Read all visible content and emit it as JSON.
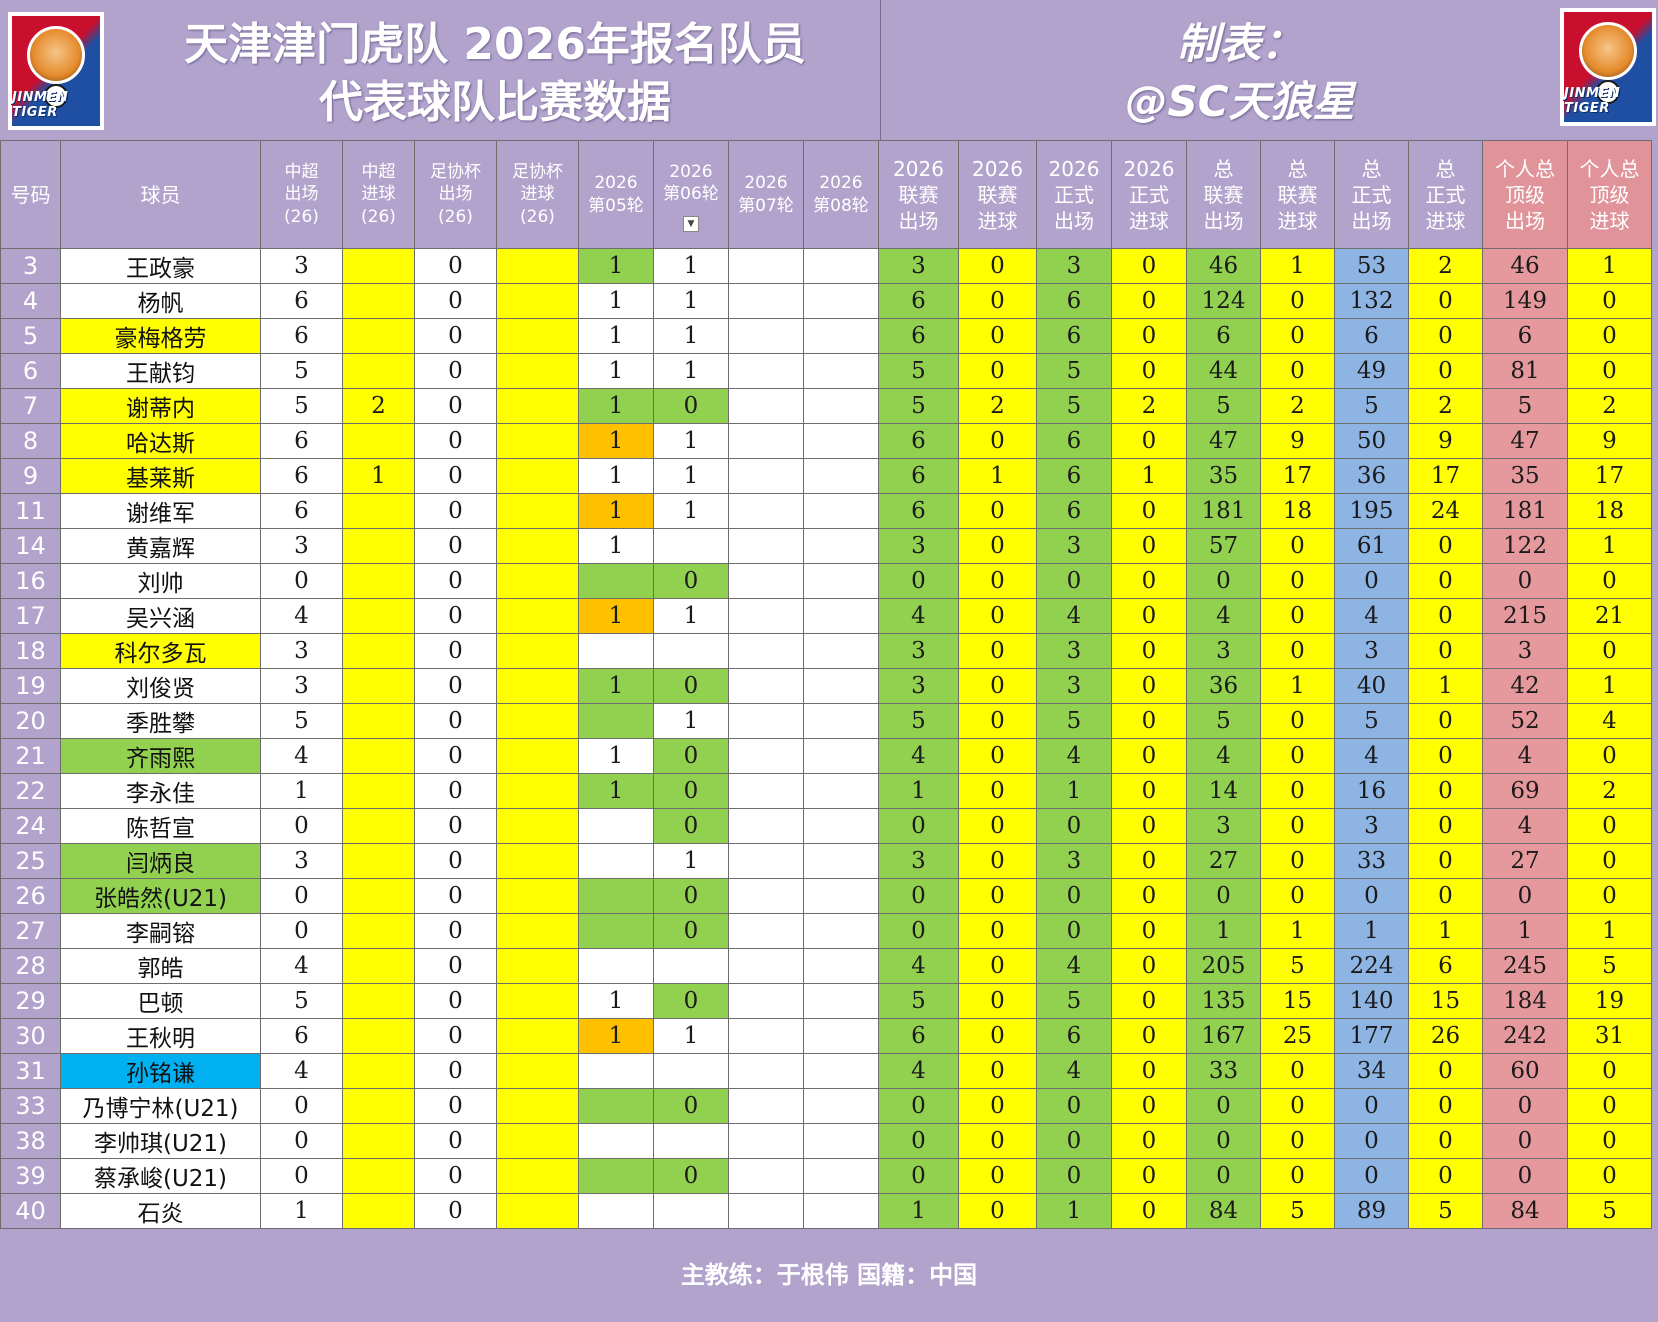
{
  "header": {
    "title_line1": "天津津门虎队 2026年报名队员",
    "title_line2": "代表球队比赛数据",
    "maker_line1": "制表：",
    "maker_line2": "@SC天狼星",
    "logo_text": "JINMEN TIGER"
  },
  "columns": [
    "号码",
    "球员",
    "中超出场(26)",
    "中超进球(26)",
    "足协杯出场(26)",
    "足协杯进球(26)",
    "2026第05轮",
    "2026第06轮",
    "2026第07轮",
    "2026第08轮",
    "2026联赛出场",
    "2026联赛进球",
    "2026正式出场",
    "2026正式进球",
    "总联赛出场",
    "总联赛进球",
    "总正式出场",
    "总正式进球",
    "个人总顶级出场",
    "个人总顶级进球"
  ],
  "header_cells": [
    {
      "l1": "号码"
    },
    {
      "l1": "球员"
    },
    {
      "l1": "中超",
      "l2": "出场",
      "l3": "(26)"
    },
    {
      "l1": "中超",
      "l2": "进球",
      "l3": "(26)"
    },
    {
      "l1": "足协杯",
      "l2": "出场",
      "l3": "(26)"
    },
    {
      "l1": "足协杯",
      "l2": "进球",
      "l3": "(26)"
    },
    {
      "l1": "2026",
      "l2": "第05轮"
    },
    {
      "l1": "2026",
      "l2": "第06轮"
    },
    {
      "l1": "2026",
      "l2": "第07轮"
    },
    {
      "l1": "2026",
      "l2": "第08轮"
    },
    {
      "l1": "2026",
      "l2": "联赛",
      "l3": "出场"
    },
    {
      "l1": "2026",
      "l2": "联赛",
      "l3": "进球"
    },
    {
      "l1": "2026",
      "l2": "正式",
      "l3": "出场"
    },
    {
      "l1": "2026",
      "l2": "正式",
      "l3": "进球"
    },
    {
      "l1": "总",
      "l2": "联赛",
      "l3": "出场"
    },
    {
      "l1": "总",
      "l2": "联赛",
      "l3": "进球"
    },
    {
      "l1": "总",
      "l2": "正式",
      "l3": "出场"
    },
    {
      "l1": "总",
      "l2": "正式",
      "l3": "进球"
    },
    {
      "l1": "个人总",
      "l2": "顶级",
      "l3": "出场"
    },
    {
      "l1": "个人总",
      "l2": "顶级",
      "l3": "进球"
    }
  ],
  "rows": [
    {
      "no": "3",
      "name": "王政豪",
      "name_hl": "",
      "csl_app": "3",
      "csl_goal": "",
      "fa_app": "0",
      "fa_goal": "",
      "r05": "1",
      "r05_c": "g",
      "r06": "1",
      "r06_c": "",
      "r07": "",
      "r08": "",
      "y_lapp": "3",
      "y_lgoal": "0",
      "y_oapp": "3",
      "y_ogoal": "0",
      "t_lapp": "46",
      "t_lgoal": "1",
      "t_oapp": "53",
      "t_ogoal": "2",
      "p_app": "46",
      "p_goal": "1"
    },
    {
      "no": "4",
      "name": "杨帆",
      "name_hl": "",
      "csl_app": "6",
      "csl_goal": "",
      "fa_app": "0",
      "fa_goal": "",
      "r05": "1",
      "r05_c": "",
      "r06": "1",
      "r06_c": "",
      "r07": "",
      "r08": "",
      "y_lapp": "6",
      "y_lgoal": "0",
      "y_oapp": "6",
      "y_ogoal": "0",
      "t_lapp": "124",
      "t_lgoal": "0",
      "t_oapp": "132",
      "t_ogoal": "0",
      "p_app": "149",
      "p_goal": "0"
    },
    {
      "no": "5",
      "name": "豪梅格劳",
      "name_hl": "y",
      "csl_app": "6",
      "csl_goal": "",
      "fa_app": "0",
      "fa_goal": "",
      "r05": "1",
      "r05_c": "",
      "r06": "1",
      "r06_c": "",
      "r07": "",
      "r08": "",
      "y_lapp": "6",
      "y_lgoal": "0",
      "y_oapp": "6",
      "y_ogoal": "0",
      "t_lapp": "6",
      "t_lgoal": "0",
      "t_oapp": "6",
      "t_ogoal": "0",
      "p_app": "6",
      "p_goal": "0"
    },
    {
      "no": "6",
      "name": "王献钧",
      "name_hl": "",
      "csl_app": "5",
      "csl_goal": "",
      "fa_app": "0",
      "fa_goal": "",
      "r05": "1",
      "r05_c": "",
      "r06": "1",
      "r06_c": "",
      "r07": "",
      "r08": "",
      "y_lapp": "5",
      "y_lgoal": "0",
      "y_oapp": "5",
      "y_ogoal": "0",
      "t_lapp": "44",
      "t_lgoal": "0",
      "t_oapp": "49",
      "t_ogoal": "0",
      "p_app": "81",
      "p_goal": "0"
    },
    {
      "no": "7",
      "name": "谢蒂内",
      "name_hl": "y",
      "csl_app": "5",
      "csl_goal": "2",
      "fa_app": "0",
      "fa_goal": "",
      "r05": "1",
      "r05_c": "g",
      "r06": "0",
      "r06_c": "g",
      "r07": "",
      "r08": "",
      "y_lapp": "5",
      "y_lgoal": "2",
      "y_oapp": "5",
      "y_ogoal": "2",
      "t_lapp": "5",
      "t_lgoal": "2",
      "t_oapp": "5",
      "t_ogoal": "2",
      "p_app": "5",
      "p_goal": "2"
    },
    {
      "no": "8",
      "name": "哈达斯",
      "name_hl": "y",
      "csl_app": "6",
      "csl_goal": "",
      "fa_app": "0",
      "fa_goal": "",
      "r05": "1",
      "r05_c": "o",
      "r06": "1",
      "r06_c": "",
      "r07": "",
      "r08": "",
      "y_lapp": "6",
      "y_lgoal": "0",
      "y_oapp": "6",
      "y_ogoal": "0",
      "t_lapp": "47",
      "t_lgoal": "9",
      "t_oapp": "50",
      "t_ogoal": "9",
      "p_app": "47",
      "p_goal": "9"
    },
    {
      "no": "9",
      "name": "基莱斯",
      "name_hl": "y",
      "csl_app": "6",
      "csl_goal": "1",
      "fa_app": "0",
      "fa_goal": "",
      "r05": "1",
      "r05_c": "",
      "r06": "1",
      "r06_c": "",
      "r07": "",
      "r08": "",
      "y_lapp": "6",
      "y_lgoal": "1",
      "y_oapp": "6",
      "y_ogoal": "1",
      "t_lapp": "35",
      "t_lgoal": "17",
      "t_oapp": "36",
      "t_ogoal": "17",
      "p_app": "35",
      "p_goal": "17"
    },
    {
      "no": "11",
      "name": "谢维军",
      "name_hl": "",
      "csl_app": "6",
      "csl_goal": "",
      "fa_app": "0",
      "fa_goal": "",
      "r05": "1",
      "r05_c": "o",
      "r06": "1",
      "r06_c": "",
      "r07": "",
      "r08": "",
      "y_lapp": "6",
      "y_lgoal": "0",
      "y_oapp": "6",
      "y_ogoal": "0",
      "t_lapp": "181",
      "t_lgoal": "18",
      "t_oapp": "195",
      "t_ogoal": "24",
      "p_app": "181",
      "p_goal": "18"
    },
    {
      "no": "14",
      "name": "黄嘉辉",
      "name_hl": "",
      "csl_app": "3",
      "csl_goal": "",
      "fa_app": "0",
      "fa_goal": "",
      "r05": "1",
      "r05_c": "",
      "r06": "",
      "r06_c": "",
      "r07": "",
      "r08": "",
      "y_lapp": "3",
      "y_lgoal": "0",
      "y_oapp": "3",
      "y_ogoal": "0",
      "t_lapp": "57",
      "t_lgoal": "0",
      "t_oapp": "61",
      "t_ogoal": "0",
      "p_app": "122",
      "p_goal": "1"
    },
    {
      "no": "16",
      "name": "刘帅",
      "name_hl": "",
      "csl_app": "0",
      "csl_goal": "",
      "fa_app": "0",
      "fa_goal": "",
      "r05": "",
      "r05_c": "g",
      "r06": "0",
      "r06_c": "g",
      "r07": "",
      "r08": "",
      "y_lapp": "0",
      "y_lgoal": "0",
      "y_oapp": "0",
      "y_ogoal": "0",
      "t_lapp": "0",
      "t_lgoal": "0",
      "t_oapp": "0",
      "t_ogoal": "0",
      "p_app": "0",
      "p_goal": "0"
    },
    {
      "no": "17",
      "name": "吴兴涵",
      "name_hl": "",
      "csl_app": "4",
      "csl_goal": "",
      "fa_app": "0",
      "fa_goal": "",
      "r05": "1",
      "r05_c": "o",
      "r06": "1",
      "r06_c": "",
      "r07": "",
      "r08": "",
      "y_lapp": "4",
      "y_lgoal": "0",
      "y_oapp": "4",
      "y_ogoal": "0",
      "t_lapp": "4",
      "t_lgoal": "0",
      "t_oapp": "4",
      "t_ogoal": "0",
      "p_app": "215",
      "p_goal": "21"
    },
    {
      "no": "18",
      "name": "科尔多瓦",
      "name_hl": "y",
      "csl_app": "3",
      "csl_goal": "",
      "fa_app": "0",
      "fa_goal": "",
      "r05": "",
      "r05_c": "",
      "r06": "",
      "r06_c": "",
      "r07": "",
      "r08": "",
      "y_lapp": "3",
      "y_lgoal": "0",
      "y_oapp": "3",
      "y_ogoal": "0",
      "t_lapp": "3",
      "t_lgoal": "0",
      "t_oapp": "3",
      "t_ogoal": "0",
      "p_app": "3",
      "p_goal": "0"
    },
    {
      "no": "19",
      "name": "刘俊贤",
      "name_hl": "",
      "csl_app": "3",
      "csl_goal": "",
      "fa_app": "0",
      "fa_goal": "",
      "r05": "1",
      "r05_c": "g",
      "r06": "0",
      "r06_c": "g",
      "r07": "",
      "r08": "",
      "y_lapp": "3",
      "y_lgoal": "0",
      "y_oapp": "3",
      "y_ogoal": "0",
      "t_lapp": "36",
      "t_lgoal": "1",
      "t_oapp": "40",
      "t_ogoal": "1",
      "p_app": "42",
      "p_goal": "1"
    },
    {
      "no": "20",
      "name": "季胜攀",
      "name_hl": "",
      "csl_app": "5",
      "csl_goal": "",
      "fa_app": "0",
      "fa_goal": "",
      "r05": "",
      "r05_c": "g",
      "r06": "1",
      "r06_c": "",
      "r07": "",
      "r08": "",
      "y_lapp": "5",
      "y_lgoal": "0",
      "y_oapp": "5",
      "y_ogoal": "0",
      "t_lapp": "5",
      "t_lgoal": "0",
      "t_oapp": "5",
      "t_ogoal": "0",
      "p_app": "52",
      "p_goal": "4"
    },
    {
      "no": "21",
      "name": "齐雨熙",
      "name_hl": "g",
      "csl_app": "4",
      "csl_goal": "",
      "fa_app": "0",
      "fa_goal": "",
      "r05": "1",
      "r05_c": "",
      "r06": "0",
      "r06_c": "g",
      "r07": "",
      "r08": "",
      "y_lapp": "4",
      "y_lgoal": "0",
      "y_oapp": "4",
      "y_ogoal": "0",
      "t_lapp": "4",
      "t_lgoal": "0",
      "t_oapp": "4",
      "t_ogoal": "0",
      "p_app": "4",
      "p_goal": "0"
    },
    {
      "no": "22",
      "name": "李永佳",
      "name_hl": "",
      "csl_app": "1",
      "csl_goal": "",
      "fa_app": "0",
      "fa_goal": "",
      "r05": "1",
      "r05_c": "g",
      "r06": "0",
      "r06_c": "g",
      "r07": "",
      "r08": "",
      "y_lapp": "1",
      "y_lgoal": "0",
      "y_oapp": "1",
      "y_ogoal": "0",
      "t_lapp": "14",
      "t_lgoal": "0",
      "t_oapp": "16",
      "t_ogoal": "0",
      "p_app": "69",
      "p_goal": "2"
    },
    {
      "no": "24",
      "name": "陈哲宣",
      "name_hl": "",
      "csl_app": "0",
      "csl_goal": "",
      "fa_app": "0",
      "fa_goal": "",
      "r05": "",
      "r05_c": "",
      "r06": "0",
      "r06_c": "g",
      "r07": "",
      "r08": "",
      "y_lapp": "0",
      "y_lgoal": "0",
      "y_oapp": "0",
      "y_ogoal": "0",
      "t_lapp": "3",
      "t_lgoal": "0",
      "t_oapp": "3",
      "t_ogoal": "0",
      "p_app": "4",
      "p_goal": "0"
    },
    {
      "no": "25",
      "name": "闫炳良",
      "name_hl": "g",
      "csl_app": "3",
      "csl_goal": "",
      "fa_app": "0",
      "fa_goal": "",
      "r05": "",
      "r05_c": "",
      "r06": "1",
      "r06_c": "",
      "r07": "",
      "r08": "",
      "y_lapp": "3",
      "y_lgoal": "0",
      "y_oapp": "3",
      "y_ogoal": "0",
      "t_lapp": "27",
      "t_lgoal": "0",
      "t_oapp": "33",
      "t_ogoal": "0",
      "p_app": "27",
      "p_goal": "0"
    },
    {
      "no": "26",
      "name": "张皓然(U21)",
      "name_hl": "g",
      "csl_app": "0",
      "csl_goal": "",
      "fa_app": "0",
      "fa_goal": "",
      "r05": "",
      "r05_c": "g",
      "r06": "0",
      "r06_c": "g",
      "r07": "",
      "r08": "",
      "y_lapp": "0",
      "y_lgoal": "0",
      "y_oapp": "0",
      "y_ogoal": "0",
      "t_lapp": "0",
      "t_lgoal": "0",
      "t_oapp": "0",
      "t_ogoal": "0",
      "p_app": "0",
      "p_goal": "0"
    },
    {
      "no": "27",
      "name": "李嗣镕",
      "name_hl": "",
      "csl_app": "0",
      "csl_goal": "",
      "fa_app": "0",
      "fa_goal": "",
      "r05": "",
      "r05_c": "g",
      "r06": "0",
      "r06_c": "g",
      "r07": "",
      "r08": "",
      "y_lapp": "0",
      "y_lgoal": "0",
      "y_oapp": "0",
      "y_ogoal": "0",
      "t_lapp": "1",
      "t_lgoal": "1",
      "t_oapp": "1",
      "t_ogoal": "1",
      "p_app": "1",
      "p_goal": "1"
    },
    {
      "no": "28",
      "name": "郭皓",
      "name_hl": "",
      "csl_app": "4",
      "csl_goal": "",
      "fa_app": "0",
      "fa_goal": "",
      "r05": "",
      "r05_c": "",
      "r06": "",
      "r06_c": "",
      "r07": "",
      "r08": "",
      "y_lapp": "4",
      "y_lgoal": "0",
      "y_oapp": "4",
      "y_ogoal": "0",
      "t_lapp": "205",
      "t_lgoal": "5",
      "t_oapp": "224",
      "t_ogoal": "6",
      "p_app": "245",
      "p_goal": "5"
    },
    {
      "no": "29",
      "name": "巴顿",
      "name_hl": "",
      "csl_app": "5",
      "csl_goal": "",
      "fa_app": "0",
      "fa_goal": "",
      "r05": "1",
      "r05_c": "",
      "r06": "0",
      "r06_c": "g",
      "r07": "",
      "r08": "",
      "y_lapp": "5",
      "y_lgoal": "0",
      "y_oapp": "5",
      "y_ogoal": "0",
      "t_lapp": "135",
      "t_lgoal": "15",
      "t_oapp": "140",
      "t_ogoal": "15",
      "p_app": "184",
      "p_goal": "19"
    },
    {
      "no": "30",
      "name": "王秋明",
      "name_hl": "",
      "csl_app": "6",
      "csl_goal": "",
      "fa_app": "0",
      "fa_goal": "",
      "r05": "1",
      "r05_c": "o",
      "r06": "1",
      "r06_c": "",
      "r07": "",
      "r08": "",
      "y_lapp": "6",
      "y_lgoal": "0",
      "y_oapp": "6",
      "y_ogoal": "0",
      "t_lapp": "167",
      "t_lgoal": "25",
      "t_oapp": "177",
      "t_ogoal": "26",
      "p_app": "242",
      "p_goal": "31"
    },
    {
      "no": "31",
      "name": "孙铭谦",
      "name_hl": "c",
      "csl_app": "4",
      "csl_goal": "",
      "fa_app": "0",
      "fa_goal": "",
      "r05": "",
      "r05_c": "",
      "r06": "",
      "r06_c": "",
      "r07": "",
      "r08": "",
      "y_lapp": "4",
      "y_lgoal": "0",
      "y_oapp": "4",
      "y_ogoal": "0",
      "t_lapp": "33",
      "t_lgoal": "0",
      "t_oapp": "34",
      "t_ogoal": "0",
      "p_app": "60",
      "p_goal": "0"
    },
    {
      "no": "33",
      "name": "乃博宁林(U21)",
      "name_hl": "",
      "csl_app": "0",
      "csl_goal": "",
      "fa_app": "0",
      "fa_goal": "",
      "r05": "",
      "r05_c": "g",
      "r06": "0",
      "r06_c": "g",
      "r07": "",
      "r08": "",
      "y_lapp": "0",
      "y_lgoal": "0",
      "y_oapp": "0",
      "y_ogoal": "0",
      "t_lapp": "0",
      "t_lgoal": "0",
      "t_oapp": "0",
      "t_ogoal": "0",
      "p_app": "0",
      "p_goal": "0"
    },
    {
      "no": "38",
      "name": "李帅琪(U21)",
      "name_hl": "",
      "csl_app": "0",
      "csl_goal": "",
      "fa_app": "0",
      "fa_goal": "",
      "r05": "",
      "r05_c": "",
      "r06": "",
      "r06_c": "",
      "r07": "",
      "r08": "",
      "y_lapp": "0",
      "y_lgoal": "0",
      "y_oapp": "0",
      "y_ogoal": "0",
      "t_lapp": "0",
      "t_lgoal": "0",
      "t_oapp": "0",
      "t_ogoal": "0",
      "p_app": "0",
      "p_goal": "0"
    },
    {
      "no": "39",
      "name": "蔡承峻(U21)",
      "name_hl": "",
      "csl_app": "0",
      "csl_goal": "",
      "fa_app": "0",
      "fa_goal": "",
      "r05": "",
      "r05_c": "g",
      "r06": "0",
      "r06_c": "g",
      "r07": "",
      "r08": "",
      "y_lapp": "0",
      "y_lgoal": "0",
      "y_oapp": "0",
      "y_ogoal": "0",
      "t_lapp": "0",
      "t_lgoal": "0",
      "t_oapp": "0",
      "t_ogoal": "0",
      "p_app": "0",
      "p_goal": "0"
    },
    {
      "no": "40",
      "name": "石炎",
      "name_hl": "",
      "csl_app": "1",
      "csl_goal": "",
      "fa_app": "0",
      "fa_goal": "",
      "r05": "",
      "r05_c": "",
      "r06": "",
      "r06_c": "",
      "r07": "",
      "r08": "",
      "y_lapp": "1",
      "y_lgoal": "0",
      "y_oapp": "1",
      "y_ogoal": "0",
      "t_lapp": "84",
      "t_lgoal": "5",
      "t_oapp": "89",
      "t_ogoal": "5",
      "p_app": "84",
      "p_goal": "5"
    }
  ],
  "footer": {
    "text": "主教练：于根伟  国籍：中国"
  },
  "colors": {
    "header_bg": "#b1a3cc",
    "yellow": "#ffff00",
    "green": "#92d050",
    "orange": "#ffc000",
    "cyan": "#00b0f0",
    "blue": "#8db4e2",
    "red": "#e6999d"
  }
}
